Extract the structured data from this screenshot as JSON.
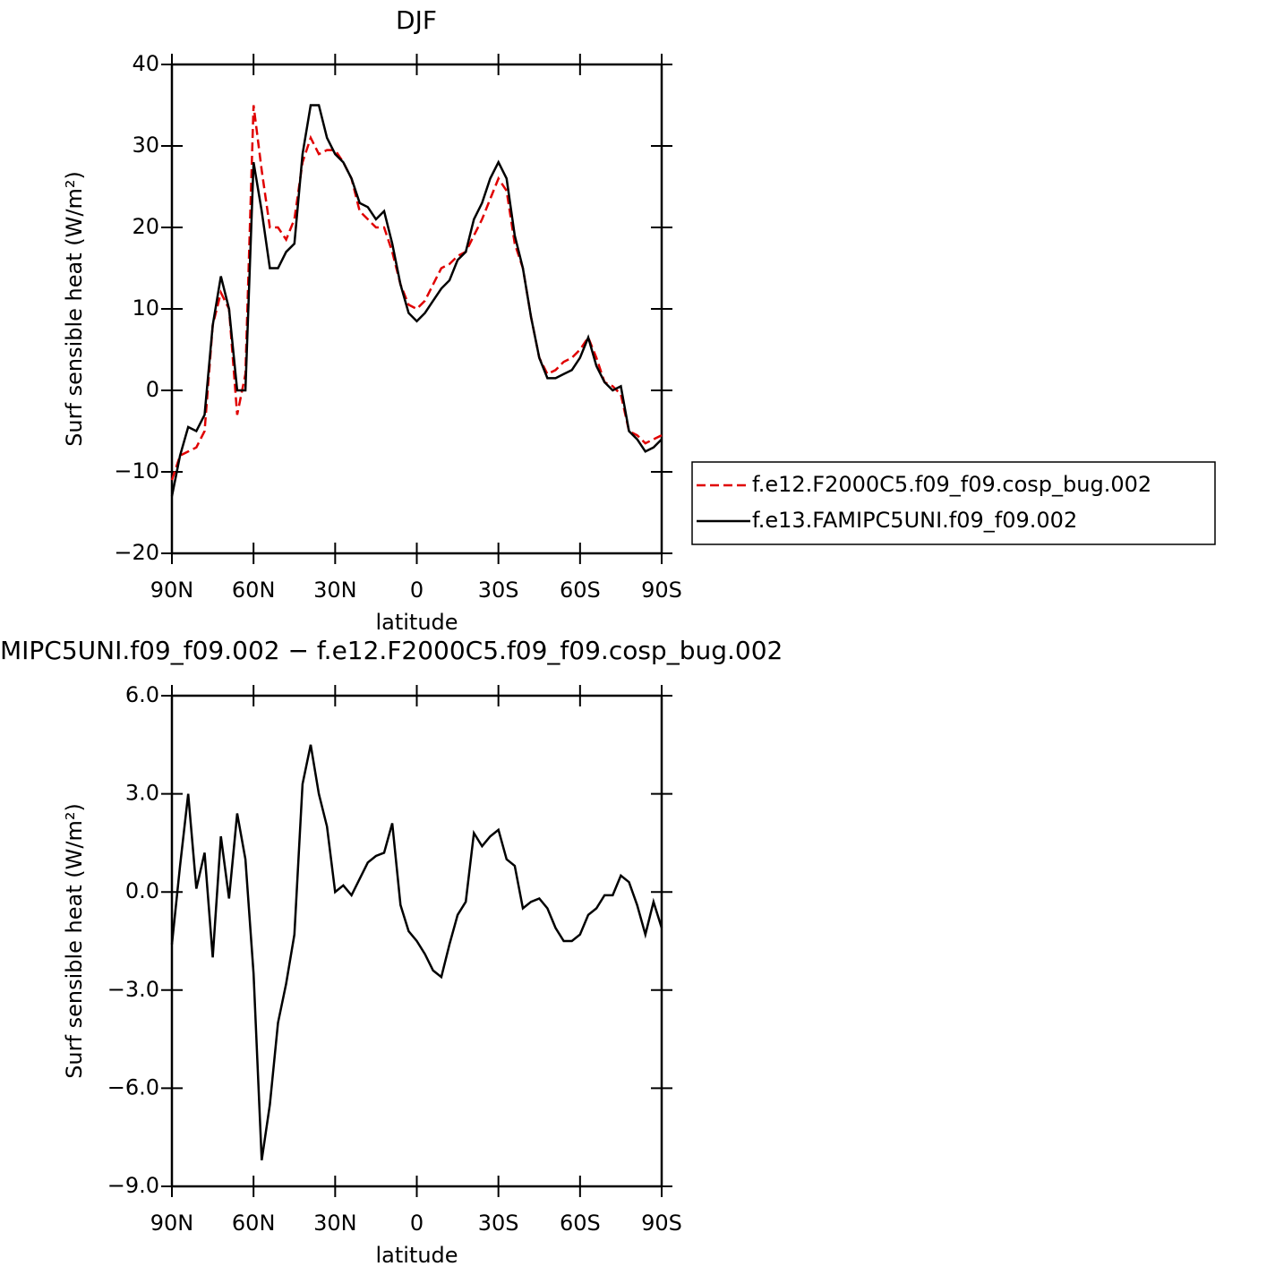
{
  "chart_data": [
    {
      "type": "line",
      "title": "DJF",
      "xlabel": "latitude",
      "ylabel": "Surf sensible heat (W/m²)",
      "x": [
        90,
        87,
        84,
        81,
        78,
        75,
        72,
        69,
        66,
        63,
        60,
        57,
        54,
        51,
        48,
        45,
        42,
        39,
        36,
        33,
        30,
        27,
        24,
        21,
        18,
        15,
        12,
        9,
        6,
        3,
        0,
        -3,
        -6,
        -9,
        -12,
        -15,
        -18,
        -21,
        -24,
        -27,
        -30,
        -33,
        -36,
        -39,
        -42,
        -45,
        -48,
        -51,
        -54,
        -57,
        -60,
        -63,
        -66,
        -69,
        -72,
        -75,
        -78,
        -81,
        -84,
        -87,
        -90
      ],
      "xlim": [
        90,
        -90
      ],
      "xticks": [
        {
          "value": 90,
          "label": "90N"
        },
        {
          "value": 60,
          "label": "60N"
        },
        {
          "value": 30,
          "label": "30N"
        },
        0,
        {
          "value": -30,
          "label": "30S"
        },
        {
          "value": -60,
          "label": "60S"
        },
        {
          "value": -90,
          "label": "90S"
        }
      ],
      "ylim": [
        -20,
        40
      ],
      "yticks": [
        {
          "value": -20,
          "label": "−20"
        },
        {
          "value": -10,
          "label": "−10"
        },
        0,
        10,
        20,
        30,
        40
      ],
      "series": [
        {
          "name": "f.e12.F2000C5.f09_f09.cosp_bug.002",
          "color": "#e00000",
          "linestyle": "dashed",
          "values": [
            -11,
            -8,
            -7.5,
            -7,
            -5,
            8,
            12,
            10,
            -3,
            2,
            35,
            27,
            20,
            20,
            18.5,
            21,
            28,
            31,
            29,
            29.5,
            29.5,
            28,
            26,
            22,
            21,
            20,
            20,
            17,
            13,
            10.5,
            10,
            11,
            13,
            15,
            15.5,
            16.5,
            17,
            19,
            21,
            23.5,
            26,
            24.5,
            18,
            15,
            9,
            4,
            2,
            2.5,
            3.5,
            4,
            5,
            6.5,
            4,
            1,
            0.5,
            -0.5,
            -5,
            -5.5,
            -6.5,
            -6,
            -5.5
          ]
        },
        {
          "name": "f.e13.FAMIPC5UNI.f09_f09.002",
          "color": "#000000",
          "linestyle": "solid",
          "values": [
            -13,
            -8,
            -4.5,
            -5,
            -3,
            8,
            14,
            10,
            0,
            0,
            28,
            22,
            15,
            15,
            17,
            18,
            29,
            35,
            35,
            31,
            29,
            28,
            26,
            23,
            22.5,
            21,
            22,
            18,
            13,
            9.5,
            8.5,
            9.5,
            11,
            12.5,
            13.5,
            16,
            17,
            21,
            23,
            26,
            28,
            26,
            19,
            15,
            9,
            4,
            1.5,
            1.5,
            2,
            2.5,
            4,
            6.5,
            3,
            1,
            0,
            0.5,
            -5,
            -6,
            -7.5,
            -7,
            -6
          ]
        }
      ]
    },
    {
      "type": "line",
      "title": "MIPC5UNI.f09_f09.002 − f.e12.F2000C5.f09_f09.cosp_bug.002",
      "xlabel": "latitude",
      "ylabel": "Surf sensible heat (W/m²)",
      "x": [
        90,
        87,
        84,
        81,
        78,
        75,
        72,
        69,
        66,
        63,
        60,
        57,
        54,
        51,
        48,
        45,
        42,
        39,
        36,
        33,
        30,
        27,
        24,
        21,
        18,
        15,
        12,
        9,
        6,
        3,
        0,
        -3,
        -6,
        -9,
        -12,
        -15,
        -18,
        -21,
        -24,
        -27,
        -30,
        -33,
        -36,
        -39,
        -42,
        -45,
        -48,
        -51,
        -54,
        -57,
        -60,
        -63,
        -66,
        -69,
        -72,
        -75,
        -78,
        -81,
        -84,
        -87,
        -90
      ],
      "xlim": [
        90,
        -90
      ],
      "xticks": [
        {
          "value": 90,
          "label": "90N"
        },
        {
          "value": 60,
          "label": "60N"
        },
        {
          "value": 30,
          "label": "30N"
        },
        0,
        {
          "value": -30,
          "label": "30S"
        },
        {
          "value": -60,
          "label": "60S"
        },
        {
          "value": -90,
          "label": "90S"
        }
      ],
      "ylim": [
        -9,
        6
      ],
      "yticks": [
        {
          "value": -9,
          "label": "−9.0"
        },
        {
          "value": -6,
          "label": "−6.0"
        },
        {
          "value": -3,
          "label": "−3.0"
        },
        {
          "value": 0,
          "label": "0.0"
        },
        {
          "value": 3,
          "label": "3.0"
        },
        {
          "value": 6,
          "label": "6.0"
        }
      ],
      "series": [
        {
          "color": "#000000",
          "linestyle": "solid",
          "values": [
            -1.6,
            0.8,
            3.0,
            0.1,
            1.2,
            -2.0,
            1.7,
            -0.2,
            2.4,
            1.0,
            -2.5,
            -8.2,
            -6.5,
            -4.0,
            -2.8,
            -1.3,
            3.3,
            4.5,
            3.0,
            2.0,
            0.0,
            0.2,
            -0.1,
            0.4,
            0.9,
            1.1,
            1.2,
            2.1,
            -0.4,
            -1.2,
            -1.5,
            -1.9,
            -2.4,
            -2.6,
            -1.6,
            -0.7,
            -0.3,
            1.8,
            1.4,
            1.7,
            1.9,
            1.0,
            0.8,
            -0.5,
            -0.3,
            -0.2,
            -0.5,
            -1.1,
            -1.5,
            -1.5,
            -1.3,
            -0.7,
            -0.5,
            -0.1,
            -0.1,
            0.5,
            0.3,
            -0.4,
            -1.3,
            -0.3,
            -1.1
          ]
        }
      ]
    }
  ]
}
